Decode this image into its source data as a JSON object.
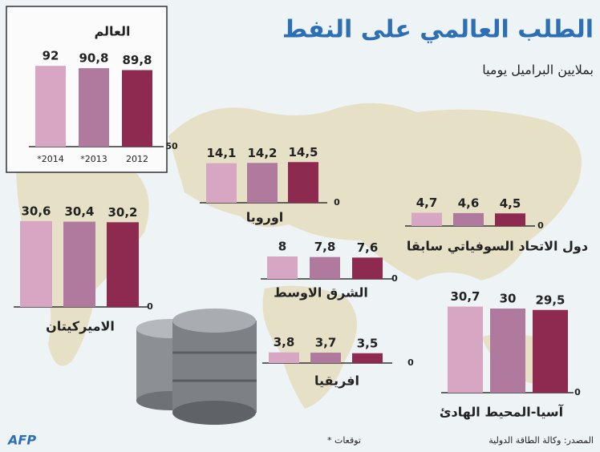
{
  "title": "الطلب العالمي على النفط",
  "subtitle": "بملايين البراميل يوميا",
  "source": "المصدر: وكالة الطاقة الدولية",
  "note": "* توقعات",
  "logo": "AFP",
  "chart_data": [
    {
      "type": "bar",
      "title": "العالم",
      "categories": [
        "*2014",
        "*2013",
        "2012"
      ],
      "values": [
        92,
        90.8,
        89.8
      ],
      "value_labels": [
        "92",
        "90,8",
        "89,8"
      ],
      "colors": [
        "#d6a6c2",
        "#b07a9e",
        "#8e2a50"
      ],
      "ylim": [
        50,
        95
      ],
      "yticks": [
        50
      ]
    },
    {
      "type": "bar",
      "title": "اوروبا",
      "values": [
        14.1,
        14.2,
        14.5
      ],
      "value_labels": [
        "14,1",
        "14,2",
        "14,5"
      ],
      "colors": [
        "#d6a6c2",
        "#b07a9e",
        "#8e2a50"
      ],
      "ylim": [
        0,
        32
      ],
      "yticks": [
        0
      ]
    },
    {
      "type": "bar",
      "title": "دول الاتحاد السوفياتي سابقا",
      "values": [
        4.7,
        4.6,
        4.5
      ],
      "value_labels": [
        "4,7",
        "4,6",
        "4,5"
      ],
      "colors": [
        "#d6a6c2",
        "#b07a9e",
        "#8e2a50"
      ],
      "ylim": [
        0,
        32
      ],
      "yticks": [
        0
      ]
    },
    {
      "type": "bar",
      "title": "الشرق الاوسط",
      "values": [
        8,
        7.8,
        7.6
      ],
      "value_labels": [
        "8",
        "7,8",
        "7,6"
      ],
      "colors": [
        "#d6a6c2",
        "#b07a9e",
        "#8e2a50"
      ],
      "ylim": [
        0,
        32
      ],
      "yticks": [
        0
      ]
    },
    {
      "type": "bar",
      "title": "الاميركيتان",
      "values": [
        30.6,
        30.4,
        30.2
      ],
      "value_labels": [
        "30,6",
        "30,4",
        "30,2"
      ],
      "colors": [
        "#d6a6c2",
        "#b07a9e",
        "#8e2a50"
      ],
      "ylim": [
        0,
        32
      ],
      "yticks": [
        0
      ]
    },
    {
      "type": "bar",
      "title": "افريقيا",
      "values": [
        3.8,
        3.7,
        3.5
      ],
      "value_labels": [
        "3,8",
        "3,7",
        "3,5"
      ],
      "colors": [
        "#d6a6c2",
        "#b07a9e",
        "#8e2a50"
      ],
      "ylim": [
        0,
        32
      ],
      "yticks": [
        0
      ]
    },
    {
      "type": "bar",
      "title": "آسيا-المحيط الهادئ",
      "values": [
        30.7,
        30,
        29.5
      ],
      "value_labels": [
        "30,7",
        "30",
        "29,5"
      ],
      "colors": [
        "#d6a6c2",
        "#b07a9e",
        "#8e2a50"
      ],
      "ylim": [
        0,
        32
      ],
      "yticks": [
        0
      ]
    }
  ]
}
